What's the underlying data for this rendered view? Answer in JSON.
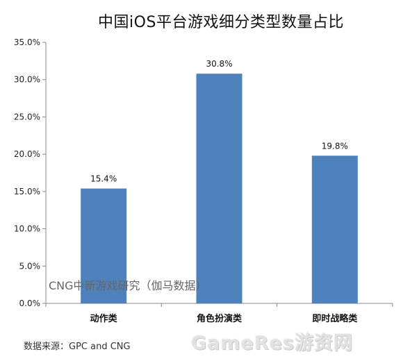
{
  "chart_data": {
    "type": "bar",
    "title": "中国iOS平台游戏细分类型数量占比",
    "categories": [
      "动作类",
      "角色扮演类",
      "即时战略类"
    ],
    "values": [
      15.4,
      30.8,
      19.8
    ],
    "data_labels": [
      "15.4%",
      "30.8%",
      "19.8%"
    ],
    "ylim": [
      0,
      35
    ],
    "yticks": [
      "0.0%",
      "5.0%",
      "10.0%",
      "15.0%",
      "20.0%",
      "25.0%",
      "30.0%",
      "35.0%"
    ],
    "grid": false,
    "bar_color": "#4f81bd",
    "xlabel": "",
    "ylabel": ""
  },
  "inner_watermark": "CNG中新游戏研究（伽马数据）",
  "source_note": "数据来源：GPC and CNG",
  "corner_logo": "GameRes游资网"
}
